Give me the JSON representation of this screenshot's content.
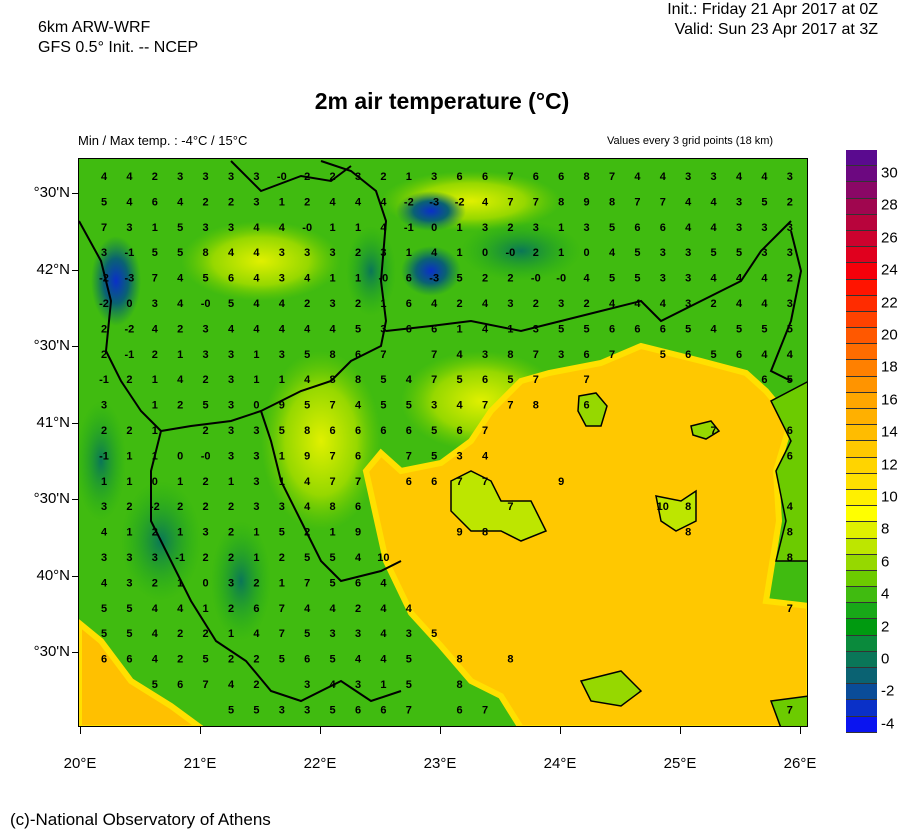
{
  "header": {
    "model_line1": "6km ARW-WRF",
    "model_line2": "GFS 0.5° Init. -- NCEP",
    "init": "Init.:  Friday 21 Apr 2017 at 0Z",
    "valid": "Valid: Sun 23 Apr 2017 at 3Z",
    "title": "2m air temperature (°C)",
    "minmax": "Min / Max temp. : -4°C / 15°C",
    "values_note": "Values every 3 grid points (18 km)"
  },
  "axes": {
    "lat_labels": [
      "°30'N",
      "42°N",
      "°30'N",
      "41°N",
      "°30'N",
      "40°N",
      "°30'N"
    ],
    "lat_values": [
      42.5,
      42,
      41.5,
      41,
      40.5,
      40,
      39.5
    ],
    "lon_labels": [
      "20°E",
      "21°E",
      "22°E",
      "23°E",
      "24°E",
      "25°E",
      "26°E"
    ],
    "lon_values": [
      20,
      21,
      22,
      23,
      24,
      25,
      26
    ]
  },
  "colorbar": {
    "levels": [
      31,
      30,
      29,
      28,
      27,
      26,
      25,
      24,
      23,
      22,
      21,
      20,
      19,
      18,
      17,
      16,
      15,
      14,
      13,
      12,
      11,
      10,
      9,
      8,
      7,
      6,
      5,
      4,
      3,
      2,
      1,
      0,
      -1,
      -2,
      -3,
      -4
    ],
    "colors": [
      "#5a0a8f",
      "#6c0880",
      "#8a0766",
      "#a0064f",
      "#b8043c",
      "#cc022e",
      "#e0001e",
      "#f5000a",
      "#ff1400",
      "#ff2c00",
      "#ff4200",
      "#ff5800",
      "#ff6c00",
      "#ff8000",
      "#ff9400",
      "#ffa600",
      "#ffb000",
      "#ffbc00",
      "#ffc800",
      "#ffd400",
      "#ffe000",
      "#fff000",
      "#ffff00",
      "#e0f000",
      "#bde600",
      "#96d800",
      "#6ccb00",
      "#40bb10",
      "#18a818",
      "#009a10",
      "#0a8a3c",
      "#0a7658",
      "#0a6272",
      "#0a4c98",
      "#0a30c8",
      "#0a14f0"
    ],
    "labels": [
      "30",
      "28",
      "26",
      "24",
      "22",
      "20",
      "18",
      "16",
      "14",
      "12",
      "10",
      "8",
      "6",
      "4",
      "2",
      "0",
      "-2",
      "-4"
    ]
  },
  "grid_values": [
    [
      4,
      4,
      2,
      3,
      3,
      3,
      3,
      "-0",
      2,
      2,
      3,
      2,
      1,
      3,
      6,
      6,
      7,
      6,
      6,
      8,
      7,
      4,
      4,
      3,
      3,
      4,
      4,
      3
    ],
    [
      5,
      4,
      6,
      4,
      2,
      2,
      3,
      1,
      2,
      4,
      4,
      4,
      -2,
      -3,
      -2,
      4,
      7,
      7,
      8,
      9,
      8,
      7,
      7,
      4,
      4,
      3,
      5,
      2
    ],
    [
      7,
      3,
      1,
      5,
      3,
      3,
      4,
      4,
      "-0",
      1,
      1,
      4,
      -1,
      0,
      1,
      3,
      2,
      3,
      1,
      3,
      5,
      6,
      6,
      4,
      4,
      3,
      3,
      3
    ],
    [
      3,
      -1,
      5,
      5,
      8,
      4,
      4,
      3,
      3,
      3,
      2,
      3,
      1,
      4,
      1,
      0,
      "-0",
      2,
      1,
      0,
      4,
      5,
      3,
      3,
      5,
      5,
      3,
      3
    ],
    [
      -2,
      -3,
      7,
      4,
      5,
      6,
      4,
      3,
      4,
      1,
      1,
      "-0",
      6,
      -3,
      5,
      2,
      2,
      "-0",
      "-0",
      4,
      5,
      5,
      3,
      3,
      4,
      4,
      4,
      2
    ],
    [
      -2,
      0,
      3,
      4,
      "-0",
      5,
      4,
      4,
      2,
      3,
      2,
      1,
      6,
      4,
      2,
      4,
      3,
      2,
      3,
      2,
      4,
      4,
      4,
      3,
      2,
      4,
      4,
      3
    ],
    [
      2,
      -2,
      4,
      2,
      3,
      4,
      4,
      4,
      4,
      4,
      5,
      3,
      6,
      6,
      1,
      4,
      1,
      3,
      5,
      5,
      6,
      6,
      6,
      5,
      4,
      5,
      5,
      5
    ],
    [
      2,
      -1,
      2,
      1,
      3,
      3,
      1,
      3,
      5,
      8,
      6,
      7,
      null,
      7,
      4,
      3,
      8,
      7,
      3,
      6,
      7,
      null,
      5,
      6,
      5,
      6,
      4,
      4
    ],
    [
      -1,
      2,
      1,
      4,
      2,
      3,
      1,
      1,
      4,
      8,
      8,
      5,
      4,
      7,
      5,
      6,
      5,
      7,
      null,
      7,
      null,
      null,
      null,
      null,
      null,
      null,
      6,
      5
    ],
    [
      3,
      null,
      1,
      2,
      5,
      3,
      0,
      9,
      5,
      7,
      4,
      5,
      5,
      3,
      4,
      7,
      7,
      8,
      null,
      6,
      null,
      null,
      null,
      null,
      null,
      null,
      null,
      null
    ],
    [
      2,
      2,
      1,
      null,
      2,
      3,
      3,
      5,
      8,
      6,
      6,
      6,
      6,
      5,
      6,
      7,
      null,
      null,
      null,
      null,
      null,
      null,
      null,
      null,
      7,
      null,
      null,
      6
    ],
    [
      -1,
      1,
      1,
      0,
      "-0",
      3,
      3,
      1,
      9,
      7,
      6,
      null,
      7,
      5,
      3,
      4,
      null,
      null,
      null,
      null,
      null,
      null,
      null,
      null,
      null,
      null,
      null,
      6
    ],
    [
      1,
      1,
      0,
      1,
      2,
      1,
      3,
      1,
      4,
      7,
      7,
      null,
      6,
      6,
      7,
      7,
      null,
      null,
      9,
      null,
      null,
      null,
      null,
      null,
      null,
      null,
      null,
      null
    ],
    [
      3,
      2,
      -2,
      2,
      2,
      2,
      3,
      3,
      4,
      8,
      6,
      null,
      null,
      null,
      null,
      null,
      7,
      null,
      null,
      null,
      null,
      null,
      10,
      8,
      null,
      null,
      null,
      4
    ],
    [
      4,
      1,
      2,
      1,
      3,
      2,
      1,
      5,
      2,
      1,
      9,
      null,
      null,
      null,
      9,
      8,
      null,
      null,
      null,
      null,
      null,
      null,
      null,
      8,
      null,
      null,
      null,
      8
    ],
    [
      3,
      3,
      3,
      -1,
      2,
      2,
      1,
      2,
      5,
      5,
      4,
      10,
      null,
      null,
      null,
      null,
      null,
      null,
      null,
      null,
      null,
      null,
      null,
      null,
      null,
      null,
      null,
      8
    ],
    [
      4,
      3,
      2,
      1,
      0,
      3,
      2,
      1,
      7,
      5,
      6,
      4,
      null,
      null,
      null,
      null,
      null,
      null,
      null,
      null,
      null,
      null,
      null,
      null,
      null,
      null,
      null,
      null
    ],
    [
      5,
      5,
      4,
      4,
      1,
      2,
      6,
      7,
      4,
      4,
      2,
      4,
      4,
      null,
      null,
      null,
      null,
      null,
      null,
      null,
      null,
      null,
      null,
      null,
      null,
      null,
      null,
      7
    ],
    [
      5,
      5,
      4,
      2,
      2,
      1,
      4,
      7,
      5,
      3,
      3,
      4,
      3,
      5,
      null,
      null,
      null,
      null,
      null,
      null,
      null,
      null,
      null,
      null,
      null,
      null,
      null,
      null
    ],
    [
      6,
      6,
      4,
      2,
      5,
      2,
      2,
      5,
      6,
      5,
      4,
      4,
      5,
      null,
      8,
      null,
      8,
      null,
      null,
      null,
      null,
      null,
      null,
      null,
      null,
      null,
      null,
      null
    ],
    [
      null,
      null,
      5,
      6,
      7,
      4,
      2,
      null,
      3,
      4,
      3,
      1,
      5,
      null,
      8,
      null,
      null,
      null,
      null,
      null,
      null,
      null,
      null,
      null,
      null,
      null,
      null,
      null
    ],
    [
      null,
      null,
      null,
      null,
      null,
      5,
      5,
      3,
      3,
      5,
      6,
      6,
      7,
      null,
      6,
      7,
      null,
      null,
      null,
      null,
      null,
      null,
      null,
      null,
      null,
      null,
      null,
      7
    ]
  ],
  "footer": "(c)-National Observatory of Athens"
}
